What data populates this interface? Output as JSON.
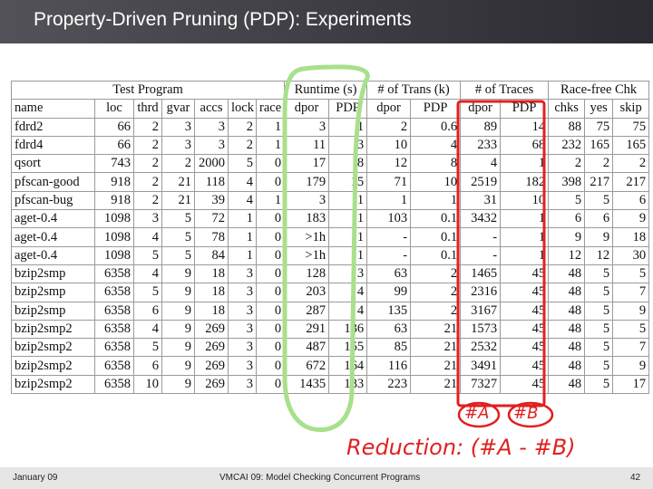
{
  "slide": {
    "title": "Property-Driven Pruning (PDP): Experiments",
    "footer_left": "January 09",
    "footer_center": "VMCAI 09: Model Checking Concurrent Programs",
    "footer_right": "42"
  },
  "table": {
    "groups": [
      {
        "label": "Test Program",
        "span": 7
      },
      {
        "label": "Runtime (s)",
        "span": 2
      },
      {
        "label": "# of Trans (k)",
        "span": 2
      },
      {
        "label": "# of Traces",
        "span": 2
      },
      {
        "label": "Race-free Chk",
        "span": 3
      }
    ],
    "columns": [
      "name",
      "loc",
      "thrd",
      "gvar",
      "accs",
      "lock",
      "race",
      "dpor",
      "PDP",
      "dpor",
      "PDP",
      "dpor",
      "PDP",
      "chks",
      "yes",
      "skip"
    ],
    "rows": [
      [
        "fdrd2",
        "66",
        "2",
        "3",
        "3",
        "2",
        "1",
        "3",
        "1",
        "2",
        "0.6",
        "89",
        "14",
        "88",
        "75",
        "75"
      ],
      [
        "fdrd4",
        "66",
        "2",
        "3",
        "3",
        "2",
        "1",
        "11",
        "3",
        "10",
        "4",
        "233",
        "68",
        "232",
        "165",
        "165"
      ],
      [
        "qsort",
        "743",
        "2",
        "2",
        "2000",
        "5",
        "0",
        "17",
        "8",
        "12",
        "8",
        "4",
        "1",
        "2",
        "2",
        "2"
      ],
      [
        "pfscan-good",
        "918",
        "2",
        "21",
        "118",
        "4",
        "0",
        "179",
        "15",
        "71",
        "10",
        "2519",
        "182",
        "398",
        "217",
        "217"
      ],
      [
        "pfscan-bug",
        "918",
        "2",
        "21",
        "39",
        "4",
        "1",
        "3",
        "1",
        "1",
        "1",
        "31",
        "10",
        "5",
        "5",
        "6"
      ],
      [
        "aget-0.4",
        "1098",
        "3",
        "5",
        "72",
        "1",
        "0",
        "183",
        "1",
        "103",
        "0.1",
        "3432",
        "1",
        "6",
        "6",
        "9"
      ],
      [
        "aget-0.4",
        "1098",
        "4",
        "5",
        "78",
        "1",
        "0",
        ">1h",
        "1",
        "-",
        "0.1",
        "-",
        "1",
        "9",
        "9",
        "18"
      ],
      [
        "aget-0.4",
        "1098",
        "5",
        "5",
        "84",
        "1",
        "0",
        ">1h",
        "1",
        "-",
        "0.1",
        "-",
        "1",
        "12",
        "12",
        "30"
      ],
      [
        "bzip2smp",
        "6358",
        "4",
        "9",
        "18",
        "3",
        "0",
        "128",
        "3",
        "63",
        "2",
        "1465",
        "45",
        "48",
        "5",
        "5"
      ],
      [
        "bzip2smp",
        "6358",
        "5",
        "9",
        "18",
        "3",
        "0",
        "203",
        "4",
        "99",
        "2",
        "2316",
        "45",
        "48",
        "5",
        "7"
      ],
      [
        "bzip2smp",
        "6358",
        "6",
        "9",
        "18",
        "3",
        "0",
        "287",
        "4",
        "135",
        "2",
        "3167",
        "45",
        "48",
        "5",
        "9"
      ],
      [
        "bzip2smp2",
        "6358",
        "4",
        "9",
        "269",
        "3",
        "0",
        "291",
        "136",
        "63",
        "21",
        "1573",
        "45",
        "48",
        "5",
        "5"
      ],
      [
        "bzip2smp2",
        "6358",
        "5",
        "9",
        "269",
        "3",
        "0",
        "487",
        "155",
        "85",
        "21",
        "2532",
        "45",
        "48",
        "5",
        "7"
      ],
      [
        "bzip2smp2",
        "6358",
        "6",
        "9",
        "269",
        "3",
        "0",
        "672",
        "164",
        "116",
        "21",
        "3491",
        "45",
        "48",
        "5",
        "9"
      ],
      [
        "bzip2smp2",
        "6358",
        "10",
        "9",
        "269",
        "3",
        "0",
        "1435",
        "183",
        "223",
        "21",
        "7327",
        "45",
        "48",
        "5",
        "17"
      ]
    ]
  },
  "annotations": {
    "label_a": "#A",
    "label_b": "#B",
    "reduction": "Reduction: (#A - #B)",
    "color_green": "#a8e08c",
    "color_red": "#e02020"
  }
}
